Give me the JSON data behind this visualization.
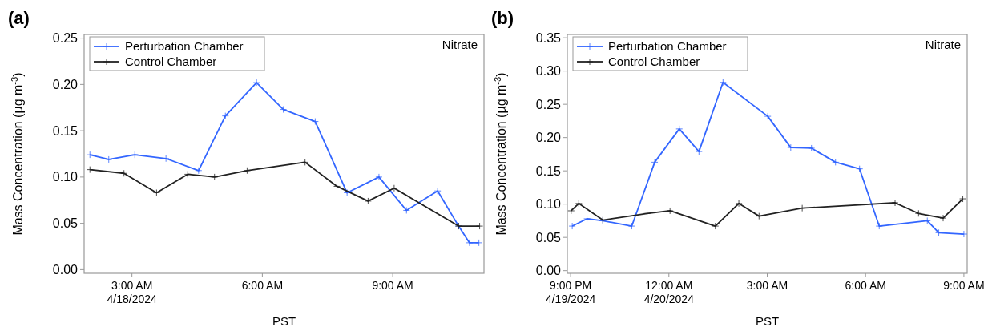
{
  "chart_data": [
    {
      "type": "line",
      "title": "(a)",
      "xlabel": "PST",
      "ylabel": "Mass Concentration (µg m$^{-3}$)",
      "annotations": [
        "Nitrate"
      ],
      "legend": "top left",
      "marker": "cross",
      "xlim": [
        "2024-04-18T01:54",
        "2024-04-18T11:06"
      ],
      "xticks": [
        {
          "value": "2024-04-18T03:00",
          "label": "3:00 AM\n4/18/2024"
        },
        {
          "value": "2024-04-18T06:00",
          "label": "6:00 AM"
        },
        {
          "value": "2024-04-18T09:00",
          "label": "9:00 AM"
        }
      ],
      "ylim": [
        -0.004,
        0.254
      ],
      "yticks": [
        {
          "value": 0,
          "label": "0.00"
        },
        {
          "value": 0.05,
          "label": "0.05"
        },
        {
          "value": 0.1,
          "label": "0.10"
        },
        {
          "value": 0.15,
          "label": "0.15"
        },
        {
          "value": 0.2,
          "label": "0.20"
        },
        {
          "value": 0.25,
          "label": "0.25"
        }
      ],
      "series": [
        {
          "name": "Perturbation Chamber",
          "color": "#3366ff",
          "x": [
            "2024-04-18T02:02",
            "2024-04-18T02:28",
            "2024-04-18T03:04",
            "2024-04-18T03:47",
            "2024-04-18T04:32",
            "2024-04-18T05:09",
            "2024-04-18T05:52",
            "2024-04-18T06:29",
            "2024-04-18T07:13",
            "2024-04-18T07:57",
            "2024-04-18T08:41",
            "2024-04-18T09:19",
            "2024-04-18T10:02",
            "2024-04-18T10:31",
            "2024-04-18T10:46",
            "2024-04-18T10:59"
          ],
          "values": [
            0.124,
            0.119,
            0.124,
            0.12,
            0.107,
            0.166,
            0.202,
            0.173,
            0.16,
            0.083,
            0.1,
            0.064,
            0.085,
            0.047,
            0.029,
            0.029
          ]
        },
        {
          "name": "Control Chamber",
          "color": "#222222",
          "x": [
            "2024-04-18T02:02",
            "2024-04-18T02:49",
            "2024-04-18T03:34",
            "2024-04-18T04:17",
            "2024-04-18T04:54",
            "2024-04-18T05:39",
            "2024-04-18T06:59",
            "2024-04-18T07:43",
            "2024-04-18T08:26",
            "2024-04-18T09:02",
            "2024-04-18T10:31",
            "2024-04-18T11:00"
          ],
          "values": [
            0.108,
            0.104,
            0.083,
            0.103,
            0.1,
            0.107,
            0.116,
            0.09,
            0.074,
            0.088,
            0.047,
            0.047
          ]
        }
      ]
    },
    {
      "type": "line",
      "title": "(b)",
      "xlabel": "PST",
      "ylabel": "Mass Concentration (µg m$^{-3}$)",
      "annotations": [
        "Nitrate"
      ],
      "legend": "top left",
      "marker": "cross",
      "xlim": [
        "2024-04-19T20:54",
        "2024-04-20T09:06"
      ],
      "xticks": [
        {
          "value": "2024-04-19T21:00",
          "label": "9:00 PM\n4/19/2024"
        },
        {
          "value": "2024-04-20T00:00",
          "label": "12:00 AM\n4/20/2024"
        },
        {
          "value": "2024-04-20T03:00",
          "label": "3:00 AM"
        },
        {
          "value": "2024-04-20T06:00",
          "label": "6:00 AM"
        },
        {
          "value": "2024-04-20T09:00",
          "label": "9:00 AM"
        }
      ],
      "ylim": [
        -0.004,
        0.355
      ],
      "yticks": [
        {
          "value": 0,
          "label": "0.00"
        },
        {
          "value": 0.05,
          "label": "0.05"
        },
        {
          "value": 0.1,
          "label": "0.10"
        },
        {
          "value": 0.15,
          "label": "0.15"
        },
        {
          "value": 0.2,
          "label": "0.20"
        },
        {
          "value": 0.25,
          "label": "0.25"
        },
        {
          "value": 0.3,
          "label": "0.30"
        },
        {
          "value": 0.35,
          "label": "0.35"
        }
      ],
      "series": [
        {
          "name": "Perturbation Chamber",
          "color": "#3366ff",
          "x": [
            "2024-04-19T21:03",
            "2024-04-19T21:30",
            "2024-04-19T21:59",
            "2024-04-19T22:52",
            "2024-04-19T23:34",
            "2024-04-20T00:19",
            "2024-04-20T00:55",
            "2024-04-20T01:39",
            "2024-04-20T03:01",
            "2024-04-20T03:43",
            "2024-04-20T04:21",
            "2024-04-20T05:05",
            "2024-04-20T05:49",
            "2024-04-20T06:25",
            "2024-04-20T07:53",
            "2024-04-20T08:14",
            "2024-04-20T09:00"
          ],
          "values": [
            0.067,
            0.078,
            0.075,
            0.067,
            0.163,
            0.213,
            0.179,
            0.283,
            0.232,
            0.185,
            0.184,
            0.163,
            0.153,
            0.067,
            0.075,
            0.057,
            0.055
          ]
        },
        {
          "name": "Control Chamber",
          "color": "#222222",
          "x": [
            "2024-04-19T21:01",
            "2024-04-19T21:15",
            "2024-04-19T21:59",
            "2024-04-19T23:20",
            "2024-04-20T00:02",
            "2024-04-20T01:25",
            "2024-04-20T02:08",
            "2024-04-20T02:45",
            "2024-04-20T04:04",
            "2024-04-20T06:54",
            "2024-04-20T07:37",
            "2024-04-20T08:22",
            "2024-04-20T08:58"
          ],
          "values": [
            0.09,
            0.101,
            0.076,
            0.086,
            0.09,
            0.067,
            0.101,
            0.082,
            0.094,
            0.102,
            0.086,
            0.079,
            0.108
          ]
        }
      ]
    }
  ]
}
